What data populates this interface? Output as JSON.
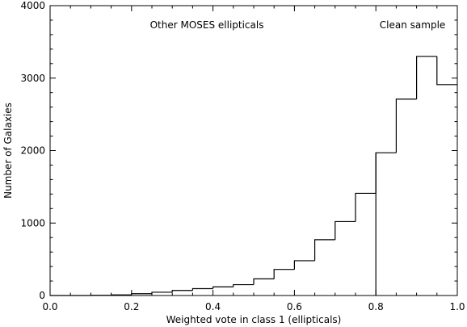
{
  "chart_data": {
    "type": "bar",
    "style": "step-histogram",
    "xlabel": "Weighted vote in class 1 (ellipticals)",
    "ylabel": "Number of Galaxies",
    "xlim": [
      0.0,
      1.0
    ],
    "ylim": [
      0,
      4000
    ],
    "bin_width": 0.05,
    "bin_starts": [
      0.0,
      0.05,
      0.1,
      0.15,
      0.2,
      0.25,
      0.3,
      0.35,
      0.4,
      0.45,
      0.5,
      0.55,
      0.6,
      0.65,
      0.7,
      0.75,
      0.8,
      0.85,
      0.9,
      0.95
    ],
    "values": [
      0,
      0,
      3,
      8,
      25,
      45,
      70,
      95,
      120,
      150,
      230,
      360,
      480,
      770,
      1020,
      1410,
      1970,
      2710,
      3300,
      2910
    ],
    "x_ticks": [
      "0.0",
      "0.2",
      "0.4",
      "0.6",
      "0.8",
      "1.0"
    ],
    "y_ticks": [
      "0",
      "1000",
      "2000",
      "3000",
      "4000"
    ],
    "split_line_x": 0.8,
    "annotations": [
      {
        "text": "Other MOSES ellipticals",
        "region": "left"
      },
      {
        "text": "Clean sample",
        "region": "right"
      }
    ],
    "grid": false,
    "legend": "none"
  }
}
